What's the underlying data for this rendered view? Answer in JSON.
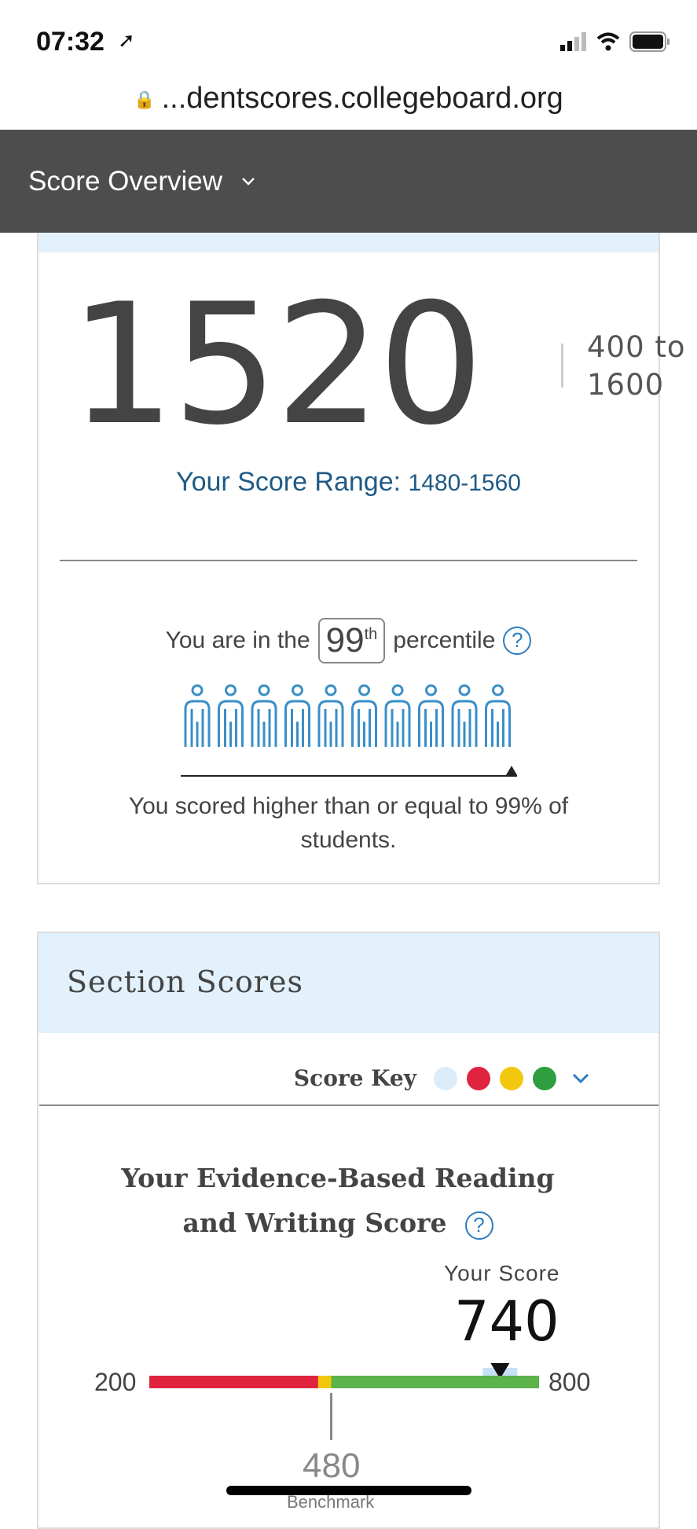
{
  "status_bar": {
    "time": "07:32",
    "icons": [
      "location-arrow-icon",
      "signal-icon",
      "wifi-icon",
      "battery-icon"
    ]
  },
  "browser": {
    "url": "...dentscores.collegeboard.org",
    "lock_icon": "lock-icon"
  },
  "nav": {
    "title": "Score Overview",
    "chevron": "chevron-down-icon"
  },
  "total": {
    "score": "1520",
    "range_line1": "400 to",
    "range_line2": "1600",
    "range_label": "Your Score Range:",
    "range_value": "1480-1560"
  },
  "percentile": {
    "prefix": "You are in the",
    "value": "99",
    "suffix_sup": "th",
    "suffix": "percentile",
    "help": "?",
    "summary": "You scored higher than or equal to 99% of students.",
    "people_count": 10,
    "fill_percent": 99
  },
  "section": {
    "header": "Section Scores",
    "score_key_label": "Score Key",
    "score_key_colors": [
      "#dcecf9",
      "#e0243f",
      "#f2c80f",
      "#2e9e3e"
    ],
    "title_line1": "Your Evidence-Based Reading",
    "title_line2": "and Writing Score",
    "help": "?",
    "your_score_label": "Your Score",
    "your_score": "740",
    "min": "200",
    "max": "800",
    "benchmark": "480",
    "benchmark_label": "Benchmark",
    "bar": {
      "min": 200,
      "max": 800,
      "score": 740,
      "segments": [
        {
          "from": 200,
          "to": 460,
          "color": "#e0243f"
        },
        {
          "from": 460,
          "to": 480,
          "color": "#f2c80f"
        },
        {
          "from": 480,
          "to": 800,
          "color": "#5cb34b"
        }
      ]
    }
  },
  "colors": {
    "accent": "#1f5a85",
    "nav_bg": "#4d4d4d",
    "people": "#3a8fc7"
  }
}
